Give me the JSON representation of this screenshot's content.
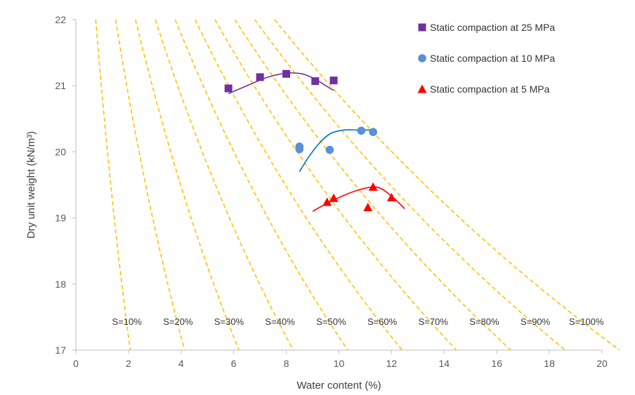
{
  "chart_data": {
    "type": "scatter",
    "xlabel": "Water content (%)",
    "ylabel": "Dry unit weight (kN/m³)",
    "xlim": [
      0,
      20
    ],
    "ylim": [
      17,
      22
    ],
    "x_ticks": [
      "0",
      "2",
      "4",
      "6",
      "8",
      "10",
      "12",
      "14",
      "16",
      "18",
      "20"
    ],
    "y_ticks": [
      "17",
      "18",
      "19",
      "20",
      "21",
      "22"
    ],
    "grid": false,
    "legend_position": "top-right",
    "series": [
      {
        "name": "Static compaction at 25 MPa",
        "marker": "square",
        "color": "#7030A0",
        "points": [
          [
            5.8,
            20.96
          ],
          [
            7.0,
            21.13
          ],
          [
            8.0,
            21.18
          ],
          [
            9.1,
            21.07
          ],
          [
            9.8,
            21.08
          ]
        ],
        "fit_curve": [
          [
            5.8,
            20.88
          ],
          [
            6.5,
            21.0
          ],
          [
            7.3,
            21.13
          ],
          [
            8.0,
            21.19
          ],
          [
            8.6,
            21.18
          ],
          [
            9.1,
            21.1
          ],
          [
            9.5,
            21.0
          ],
          [
            9.8,
            20.93
          ]
        ]
      },
      {
        "name": "Static compaction at 10 MPa",
        "marker": "circle",
        "color": "#5B8FD6",
        "line_color": "#0070C0",
        "points": [
          [
            8.5,
            20.08
          ],
          [
            8.5,
            20.04
          ],
          [
            9.65,
            20.03
          ],
          [
            10.85,
            20.32
          ],
          [
            11.3,
            20.3
          ]
        ],
        "fit_curve": [
          [
            8.5,
            19.7
          ],
          [
            8.9,
            19.95
          ],
          [
            9.3,
            20.15
          ],
          [
            9.7,
            20.28
          ],
          [
            10.2,
            20.33
          ],
          [
            10.7,
            20.33
          ],
          [
            11.2,
            20.33
          ]
        ]
      },
      {
        "name": "Static compaction at 5 MPa",
        "marker": "triangle",
        "color": "#FF0000",
        "points": [
          [
            9.55,
            19.24
          ],
          [
            9.8,
            19.3
          ],
          [
            11.3,
            19.47
          ],
          [
            11.1,
            19.16
          ],
          [
            12.0,
            19.31
          ]
        ],
        "fit_curve": [
          [
            9.0,
            19.1
          ],
          [
            9.6,
            19.23
          ],
          [
            10.3,
            19.36
          ],
          [
            11.0,
            19.45
          ],
          [
            11.5,
            19.46
          ],
          [
            12.0,
            19.33
          ],
          [
            12.5,
            19.14
          ]
        ]
      }
    ],
    "saturation_lines": [
      {
        "label": "S=10%",
        "S": 0.1
      },
      {
        "label": "S=20%",
        "S": 0.2
      },
      {
        "label": "S=30%",
        "S": 0.3
      },
      {
        "label": "S=40%",
        "S": 0.4
      },
      {
        "label": "S=50%",
        "S": 0.5
      },
      {
        "label": "S=60%",
        "S": 0.6
      },
      {
        "label": "S=70%",
        "S": 0.7
      },
      {
        "label": "S=80%",
        "S": 0.8
      },
      {
        "label": "S=90%",
        "S": 0.9
      },
      {
        "label": "S=100%",
        "S": 1.0
      }
    ],
    "saturation_style": {
      "color": "#FFC000",
      "dash": "dashed"
    }
  }
}
